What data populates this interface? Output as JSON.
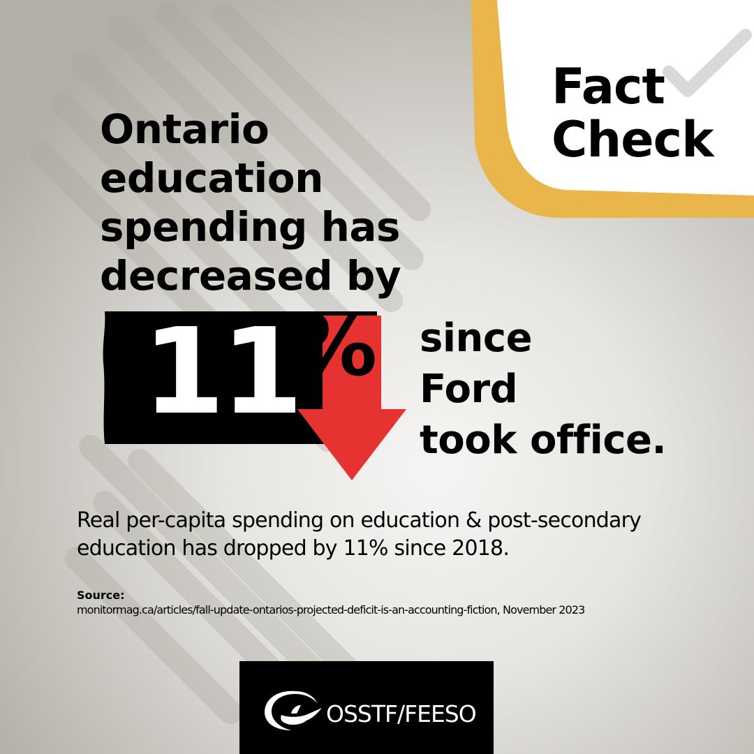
{
  "headline": {
    "lines": [
      "Ontario",
      "education",
      "spending has",
      "decreased by"
    ]
  },
  "badge": {
    "lines": [
      "Fact",
      "Check"
    ],
    "accent_color": "#eab54a",
    "check_icon": "checkmark-icon"
  },
  "stat": {
    "number": "11",
    "symbol": "%",
    "trend_icon": "down-arrow-icon",
    "arrow_color": "#e63331",
    "suffix_lines": [
      "since",
      "Ford",
      "took office."
    ]
  },
  "body": {
    "lines": [
      "Real per-capita spending on education & post-secondary",
      "education has dropped by 11% since 2018."
    ]
  },
  "source": {
    "label": "Source:",
    "text": "monitormag.ca/articles/fall-update-ontarios-projected-deficit-is-an-accounting-fiction, November 2023"
  },
  "logo": {
    "text": "OSSTF/FEESO",
    "icon": "lamp-of-learning-icon"
  }
}
